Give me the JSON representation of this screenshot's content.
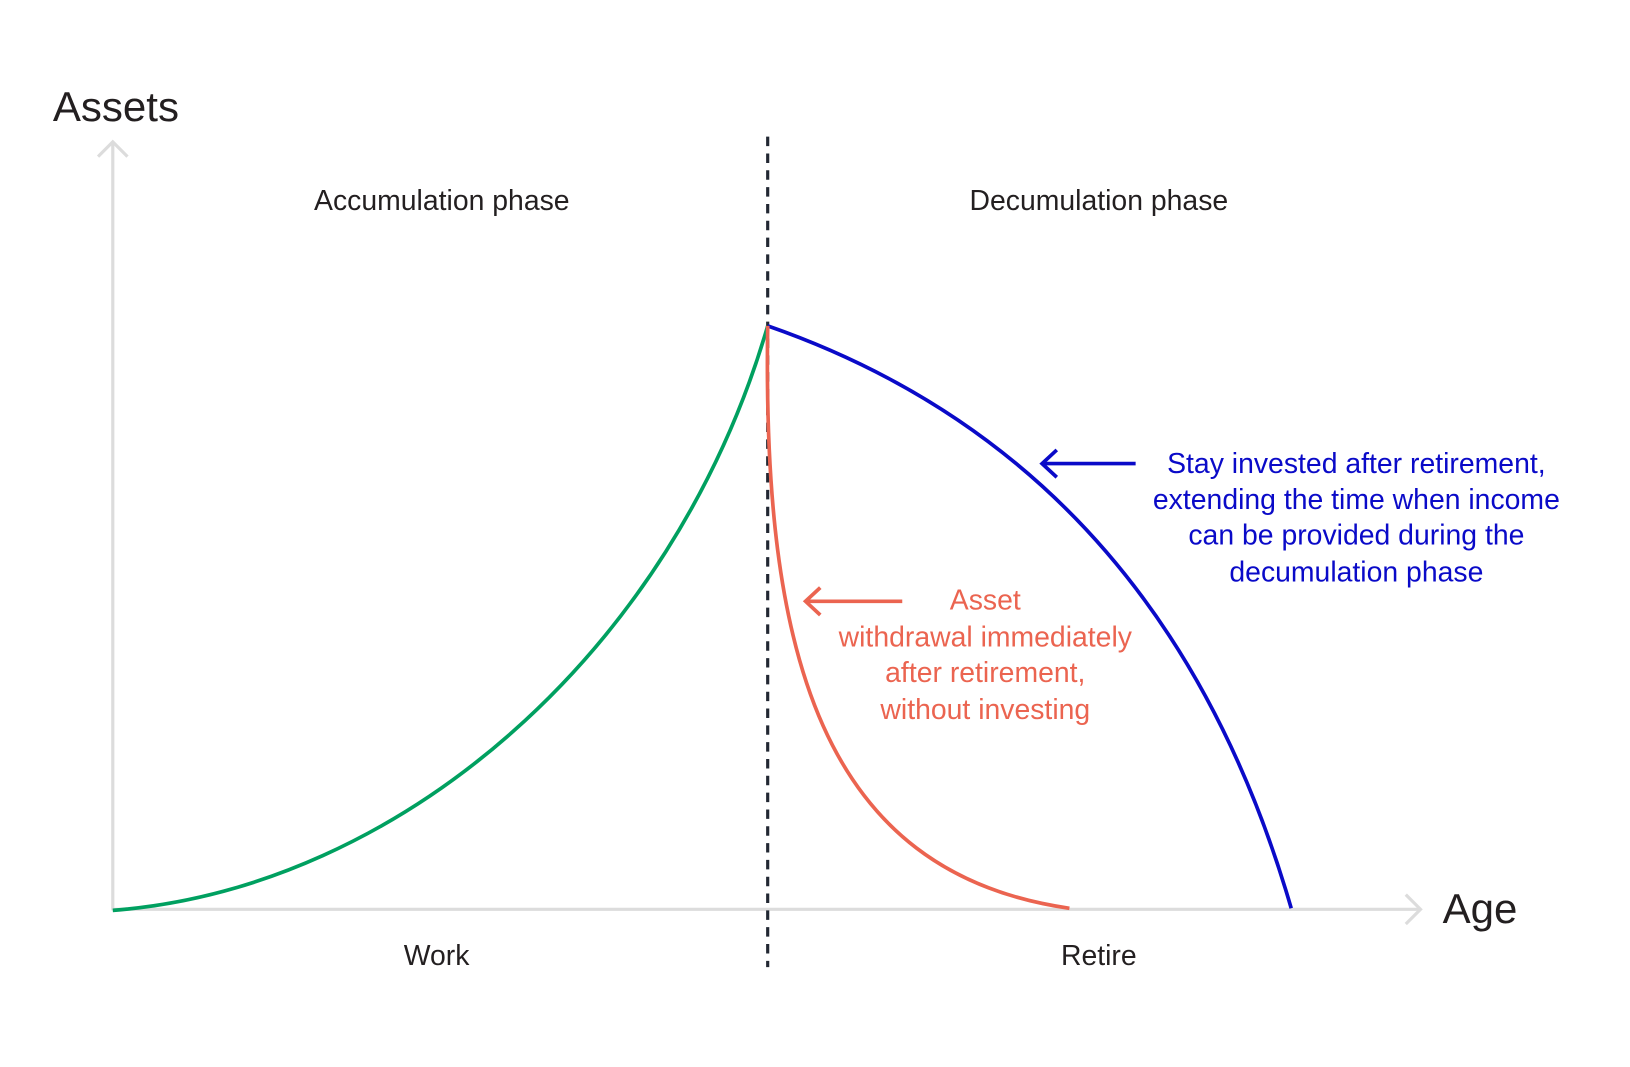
{
  "axes": {
    "y_label": "Assets",
    "x_label": "Age"
  },
  "phases": {
    "left": "Accumulation phase",
    "right": "Decumulation phase"
  },
  "periods": {
    "left": "Work",
    "right": "Retire"
  },
  "annotations": {
    "invested": [
      "Stay invested after retirement,",
      "extending the time when income",
      "can be provided during the",
      "decumulation phase"
    ],
    "withdrawal": [
      "Asset",
      "withdrawal immediately",
      "after retirement,",
      "without investing"
    ]
  },
  "colors": {
    "accumulation_curve": "#00a060",
    "invested_curve": "#0a0ac8",
    "withdrawal_curve": "#eb6450",
    "axis": "#dcdcdc",
    "divider": "#222833",
    "text": "#231f20"
  },
  "icons": {
    "annotation_pointer": "arrow-left-icon",
    "axis_end": "arrow-head-icon"
  }
}
